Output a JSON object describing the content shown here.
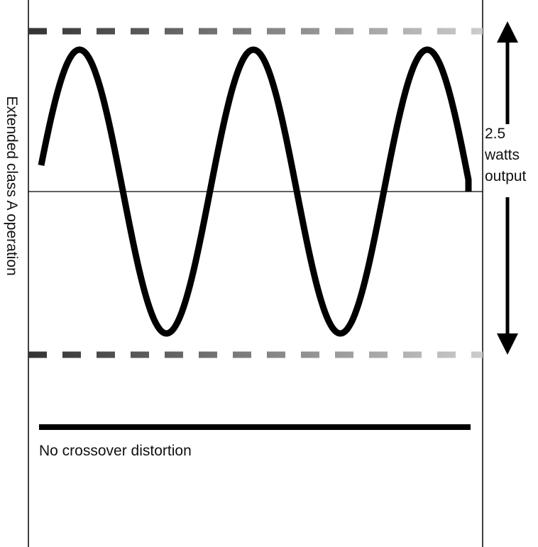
{
  "side_label": "Extended class A operation",
  "output_label": [
    "2.5",
    "watts",
    "output"
  ],
  "caption": "No crossover distortion"
}
